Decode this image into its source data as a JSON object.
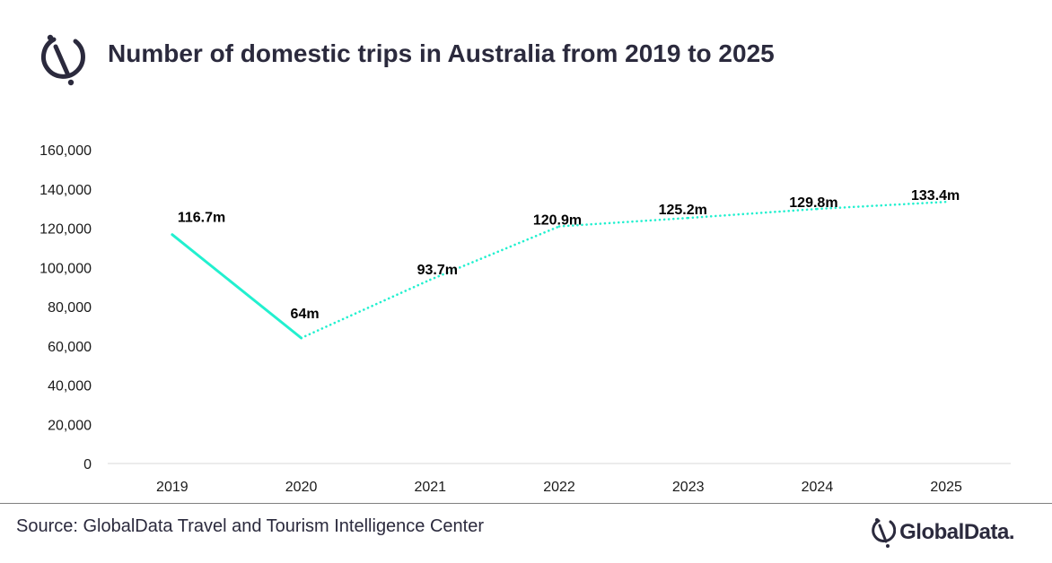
{
  "header": {
    "title": "Number of domestic trips in Australia from 2019 to 2025",
    "logo_icon": "globaldata-mark-icon"
  },
  "footer": {
    "source": "Source: GlobalData Travel and Tourism Intelligence Center",
    "brand": "GlobalData."
  },
  "colors": {
    "line": "#22f0cf",
    "text": "#2b2a3d",
    "axis": "#d9d9d9"
  },
  "chart_data": {
    "type": "line",
    "title": "Number of domestic trips in Australia from 2019 to 2025",
    "xlabel": "",
    "ylabel": "",
    "x": [
      "2019",
      "2020",
      "2021",
      "2022",
      "2023",
      "2024",
      "2025"
    ],
    "values": [
      116700,
      64000,
      93700,
      120900,
      125200,
      129800,
      133400
    ],
    "data_labels": [
      "116.7m",
      "64m",
      "93.7m",
      "120.9m",
      "125.2m",
      "129.8m",
      "133.4m"
    ],
    "line_style": [
      "solid",
      "dotted",
      "dotted",
      "dotted",
      "dotted",
      "dotted"
    ],
    "ylim": [
      0,
      160000
    ],
    "yticks": [
      0,
      20000,
      40000,
      60000,
      80000,
      100000,
      120000,
      140000,
      160000
    ],
    "ytick_labels": [
      "0",
      "20,000",
      "40,000",
      "60,000",
      "80,000",
      "100,000",
      "120,000",
      "140,000",
      "160,000"
    ],
    "grid": false,
    "legend": "none"
  }
}
